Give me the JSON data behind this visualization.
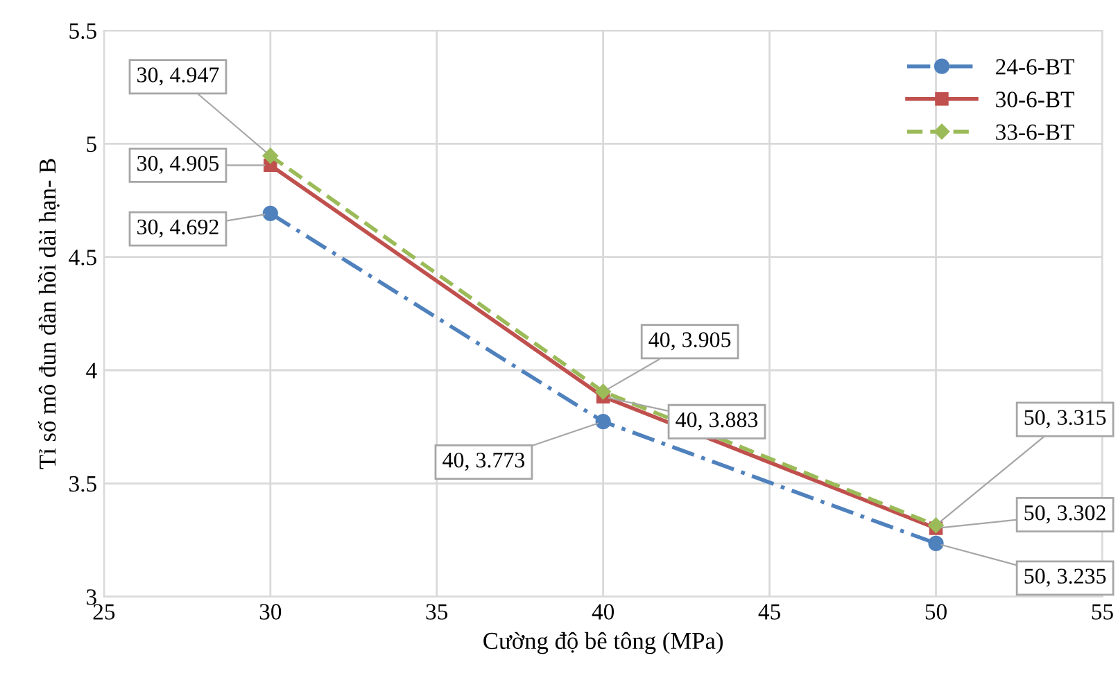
{
  "chart_data": {
    "type": "line",
    "xlabel": "Cường độ bê tông (MPa)",
    "ylabel": "Tỉ số mô đun đàn hồi dài hạn- B",
    "x": [
      30,
      40,
      50
    ],
    "series": [
      {
        "name": "24-6-BT",
        "color": "#4f81bd",
        "values": [
          4.692,
          3.773,
          3.235
        ],
        "marker": "circle",
        "line_style": "dashdot",
        "value_labels": [
          "30, 4.692",
          "40, 3.773",
          "50, 3.235"
        ]
      },
      {
        "name": "30-6-BT",
        "color": "#c0504d",
        "values": [
          4.905,
          3.883,
          3.302
        ],
        "marker": "square",
        "line_style": "solid",
        "value_labels": [
          "30, 4.905",
          "40, 3.883",
          "50, 3.302"
        ]
      },
      {
        "name": "33-6-BT",
        "color": "#9bbb59",
        "values": [
          4.947,
          3.905,
          3.315
        ],
        "marker": "diamond",
        "line_style": "dashed",
        "value_labels": [
          "30, 4.947",
          "40, 3.905",
          "50, 3.315"
        ]
      }
    ],
    "xlim": [
      25,
      55
    ],
    "xticks": [
      25,
      30,
      35,
      40,
      45,
      50,
      55
    ],
    "ylim": [
      3,
      5.5
    ],
    "yticks": [
      3,
      3.5,
      4,
      4.5,
      5,
      5.5
    ],
    "grid": true,
    "legend": "top right"
  }
}
